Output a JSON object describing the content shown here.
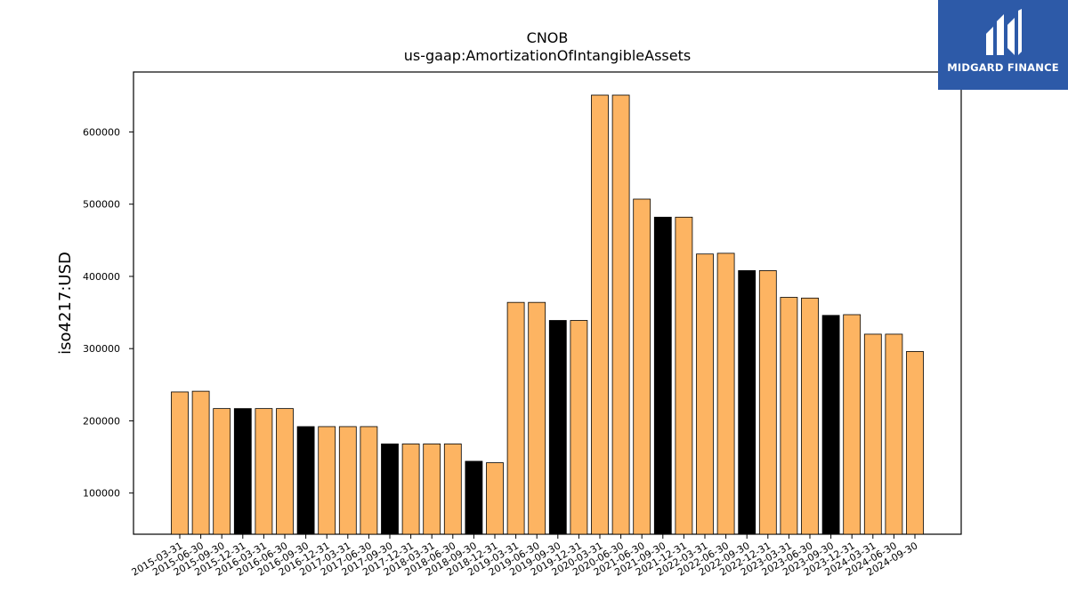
{
  "logo": {
    "text": "MIDGARD FINANCE"
  },
  "chart_data": {
    "type": "bar",
    "title": "CNOB",
    "subtitle": "us-gaap:AmortizationOfIntangibleAssets",
    "xlabel": "",
    "ylabel": "iso4217:USD",
    "ylim": [
      43000,
      683000
    ],
    "yticks": [
      100000,
      200000,
      300000,
      400000,
      500000,
      600000
    ],
    "grid": false,
    "colors": {
      "default": "#fdb462",
      "q4": "#000000",
      "edge": "#000000"
    },
    "categories": [
      "2015-03-31",
      "2015-06-30",
      "2015-09-30",
      "2015-12-31",
      "2016-03-31",
      "2016-06-30",
      "2016-09-30",
      "2016-12-31",
      "2017-03-31",
      "2017-06-30",
      "2017-09-30",
      "2017-12-31",
      "2018-03-31",
      "2018-06-30",
      "2018-09-30",
      "2018-12-31",
      "2019-03-31",
      "2019-06-30",
      "2019-09-30",
      "2019-12-31",
      "2020-03-31",
      "2020-06-30",
      "2021-06-30",
      "2021-09-30",
      "2021-12-31",
      "2022-03-31",
      "2022-06-30",
      "2022-09-30",
      "2022-12-31",
      "2023-03-31",
      "2023-06-30",
      "2023-09-30",
      "2023-12-31",
      "2024-03-31",
      "2024-06-30",
      "2024-09-30"
    ],
    "values": [
      240000,
      241000,
      217000,
      217000,
      217000,
      217000,
      192000,
      192000,
      192000,
      192000,
      168000,
      168000,
      168000,
      168000,
      144000,
      142000,
      364000,
      364000,
      339000,
      339000,
      651000,
      651000,
      507000,
      482000,
      482000,
      431000,
      432000,
      408000,
      408000,
      371000,
      370000,
      346000,
      347000,
      320000,
      320000,
      296000
    ],
    "highlight": [
      "2015-12-31",
      "2016-09-30",
      "2017-09-30",
      "2018-09-30",
      "2019-09-30",
      "2021-09-30",
      "2022-09-30",
      "2023-09-30"
    ]
  }
}
